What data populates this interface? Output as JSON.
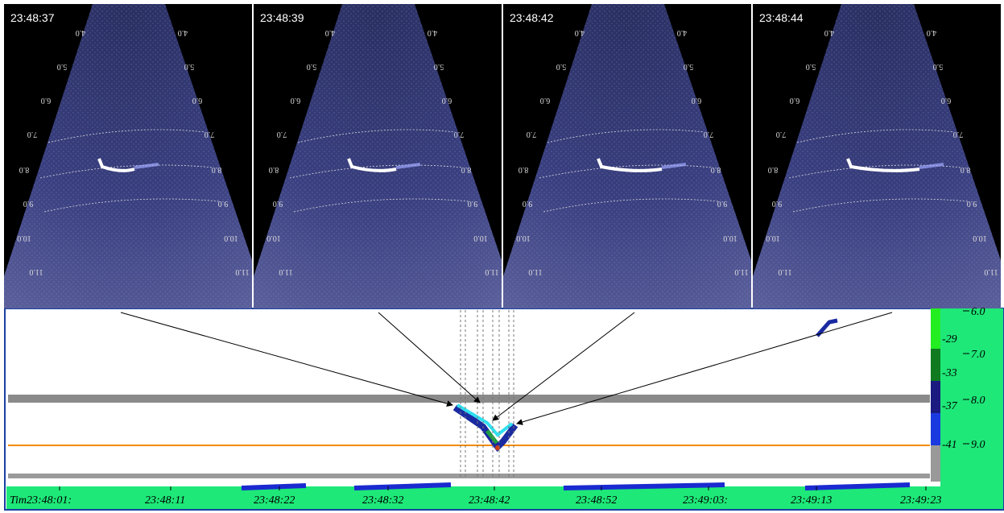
{
  "panels": [
    {
      "time": "23:48:37"
    },
    {
      "time": "23:48:39"
    },
    {
      "time": "23:48:42"
    },
    {
      "time": "23:48:44"
    }
  ],
  "range_labels": [
    "4.0",
    "5.0",
    "6.0",
    "7.0",
    "8.0",
    "9.0",
    "10.0",
    "11.0"
  ],
  "echogram": {
    "color_scale": [
      "-29",
      "-33",
      "-37",
      "-41"
    ],
    "depth_ticks": [
      "6.0",
      "7.0",
      "8.0",
      "9.0"
    ],
    "time_ticks": [
      "Tim23:48:01:",
      "23:48:11",
      "23:48:22",
      "23:48:32",
      "23:48:42",
      "23:48:52",
      "23:49:03:",
      "23:49:13",
      "23:49:23"
    ]
  }
}
